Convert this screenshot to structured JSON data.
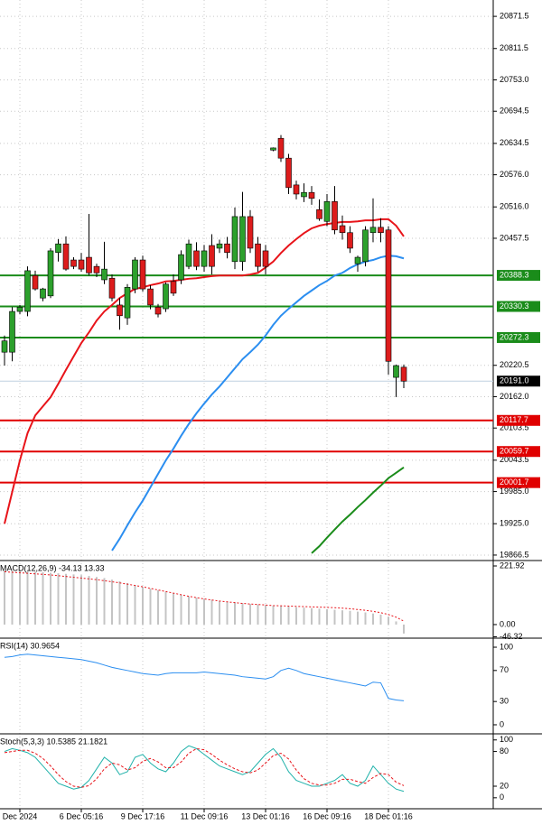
{
  "chart_data": [
    {
      "type": "candlestick",
      "categories": [
        null,
        null,
        "Dec 2024",
        null,
        null,
        null,
        null,
        null,
        null,
        null,
        "6 Dec 05:16",
        null,
        null,
        null,
        null,
        null,
        null,
        null,
        "9 Dec 17:16",
        null,
        null,
        null,
        null,
        null,
        null,
        null,
        "11 Dec 09:16",
        null,
        null,
        null,
        null,
        null,
        null,
        null,
        "13 Dec 01:16",
        null,
        null,
        null,
        null,
        null,
        null,
        null,
        "16 Dec 09:16",
        null,
        null,
        null,
        null,
        null,
        null,
        null,
        "18 Dec 01:16",
        null,
        null
      ],
      "open": [
        20245,
        20245,
        20321,
        20321,
        20388,
        20346,
        20350,
        20431,
        20447,
        20417,
        20417,
        20422,
        20405,
        20380,
        20383,
        20333,
        20309,
        20363,
        20417,
        20363,
        20329,
        20326,
        20377,
        20380,
        20405,
        20434,
        20405,
        20444,
        20439,
        20447,
        20414,
        20414,
        20498,
        20447,
        20434,
        20622,
        20644,
        20607,
        20557,
        20535,
        20543,
        20511,
        20489,
        20526,
        20481,
        20468,
        20410,
        20414,
        20468,
        20478,
        20473,
        20198,
        20217
      ],
      "high": [
        20276,
        20329,
        20333,
        20405,
        20397,
        20365,
        20439,
        20456,
        20461,
        20422,
        20430,
        20503,
        20410,
        20451,
        20390,
        20346,
        20372,
        20422,
        20425,
        20370,
        20335,
        20375,
        20390,
        20435,
        20455,
        20450,
        20445,
        20465,
        20455,
        20460,
        20515,
        20544,
        20510,
        20460,
        20445,
        20627,
        20650,
        20615,
        20565,
        20560,
        20555,
        20530,
        20540,
        20555,
        20500,
        20480,
        20425,
        20480,
        20532,
        20495,
        20480,
        20222,
        20222
      ],
      "low": [
        20220,
        20228,
        20316,
        20312,
        20360,
        20340,
        20346,
        20414,
        20397,
        20400,
        20395,
        20388,
        20385,
        20372,
        20340,
        20287,
        20296,
        20355,
        20358,
        20325,
        20310,
        20320,
        20350,
        20372,
        20400,
        20398,
        20395,
        20390,
        20430,
        20420,
        20400,
        20397,
        20430,
        20395,
        20390,
        20620,
        20600,
        20540,
        20530,
        20525,
        20520,
        20490,
        20480,
        20465,
        20455,
        20430,
        20395,
        20405,
        20450,
        20450,
        20203,
        20161,
        20178
      ],
      "close": [
        20266,
        20321,
        20329,
        20397,
        20363,
        20363,
        20434,
        20447,
        20400,
        20405,
        20400,
        20393,
        20393,
        20400,
        20346,
        20313,
        20366,
        20417,
        20363,
        20333,
        20316,
        20372,
        20355,
        20427,
        20447,
        20405,
        20434,
        20405,
        20447,
        20431,
        20498,
        20498,
        20439,
        20405,
        20405,
        20626,
        20607,
        20552,
        20540,
        20543,
        20532,
        20494,
        20526,
        20473,
        20468,
        20439,
        20422,
        20473,
        20478,
        20468,
        20228,
        20220,
        20191
      ],
      "up_color": "#2ca02c",
      "down_color": "#dd1c1c",
      "lines": [
        {
          "color": "#e8141a",
          "values": [
            19925,
            19984,
            20043,
            20094,
            20127,
            20144,
            20161,
            20186,
            20212,
            20237,
            20262,
            20282,
            20304,
            20321,
            20333,
            20346,
            20355,
            20363,
            20366,
            20370,
            20373,
            20377,
            20378,
            20380,
            20382,
            20383,
            20385,
            20387,
            20388,
            20388,
            20388,
            20388,
            20390,
            20393,
            20403,
            20414,
            20430,
            20444,
            20456,
            20467,
            20476,
            20481,
            20484,
            20486,
            20488,
            20488,
            20489,
            20491,
            20491,
            20493,
            20493,
            20481,
            20461
          ]
        },
        {
          "color": "#2b8ef0",
          "values": [
            null,
            null,
            null,
            null,
            null,
            null,
            null,
            null,
            null,
            null,
            null,
            null,
            null,
            null,
            19875,
            19897,
            19922,
            19946,
            19968,
            19993,
            20018,
            20043,
            20065,
            20089,
            20111,
            20131,
            20149,
            20166,
            20181,
            20198,
            20215,
            20232,
            20245,
            20259,
            20276,
            20296,
            20313,
            20326,
            20338,
            20350,
            20360,
            20370,
            20378,
            20388,
            20393,
            20402,
            20409,
            20414,
            20417,
            20422,
            20425,
            20424,
            20420
          ]
        },
        {
          "color": "#1a8c1a",
          "values": [
            null,
            null,
            null,
            null,
            null,
            null,
            null,
            null,
            null,
            null,
            null,
            null,
            null,
            null,
            null,
            null,
            null,
            null,
            null,
            null,
            null,
            null,
            null,
            null,
            null,
            null,
            null,
            null,
            null,
            null,
            null,
            null,
            null,
            null,
            null,
            null,
            null,
            null,
            null,
            null,
            19870,
            19883,
            19899,
            19914,
            19929,
            19942,
            19956,
            19969,
            19983,
            19996,
            20010,
            20020,
            20030
          ]
        }
      ],
      "levels": [
        {
          "value": 20388.3,
          "color": "#1a8c1a"
        },
        {
          "value": 20330.3,
          "color": "#1a8c1a"
        },
        {
          "value": 20272.3,
          "color": "#1a8c1a"
        },
        {
          "value": 20117.7,
          "color": "#e00000"
        },
        {
          "value": 20059.7,
          "color": "#e00000"
        },
        {
          "value": 20001.7,
          "color": "#e00000"
        }
      ],
      "current_price": {
        "value": 20191,
        "label": "20191.0"
      },
      "ylim": [
        19858,
        20902
      ],
      "yticks": [
        20871.5,
        20811.5,
        {
          "value": 20753,
          "label": "20753.0"
        },
        20694.5,
        20634.5,
        {
          "value": 20576,
          "label": "20576.0"
        },
        {
          "value": 20516,
          "label": "20516.0"
        },
        20457.5,
        20220.5,
        {
          "value": 20162,
          "label": "20162.0"
        },
        20103.5,
        20043.5,
        {
          "value": 19985,
          "label": "19985.0"
        },
        {
          "value": 19925,
          "label": "19925.0"
        },
        19866.5
      ],
      "grid": true
    },
    {
      "type": "macd",
      "title": "MACD(12,26,9) -34.13 13.33",
      "values": [
        205,
        204,
        203,
        202,
        200,
        198,
        196,
        194,
        192,
        190,
        187,
        184,
        180,
        176,
        170,
        164,
        157,
        150,
        143,
        136,
        130,
        124,
        118,
        112,
        107,
        102,
        98,
        94,
        90,
        87,
        84,
        81,
        78,
        76,
        74,
        72,
        70,
        68,
        66,
        64,
        62,
        60,
        58,
        56,
        54,
        52,
        49,
        46,
        42,
        38,
        30,
        12,
        -34
      ],
      "color": "#c4c4c4",
      "signal": {
        "color": "#e8141a",
        "values": [
          200,
          198,
          196,
          194,
          192,
          190,
          188,
          185,
          182,
          179,
          176,
          173,
          170,
          166,
          162,
          158,
          153,
          148,
          143,
          137,
          131,
          125,
          119,
          113,
          107,
          102,
          97,
          93,
          89,
          86,
          83,
          80,
          78,
          76,
          74,
          72,
          71,
          70,
          69,
          68,
          67,
          66,
          65,
          64,
          62,
          60,
          57,
          54,
          50,
          45,
          38,
          28,
          13
        ]
      },
      "ylim": [
        -48,
        239
      ],
      "yticks": [
        221.92,
        {
          "value": 0,
          "label": "0.00"
        },
        -46.32
      ]
    },
    {
      "type": "line",
      "title": "RSI(14) 30.9654",
      "series": [
        {
          "color": "#2b8ef0",
          "values": [
            87,
            88,
            90,
            91,
            90,
            89,
            88,
            87,
            86,
            85,
            84,
            82,
            80,
            77,
            74,
            72,
            70,
            68,
            66,
            65,
            64,
            66,
            67,
            67,
            67,
            67,
            68,
            67,
            66,
            65,
            64,
            62,
            61,
            60,
            59,
            62,
            70,
            73,
            70,
            66,
            64,
            62,
            60,
            58,
            56,
            54,
            52,
            50,
            55,
            54,
            34,
            32,
            31
          ]
        }
      ],
      "ylim": [
        -10.5,
        110.5
      ],
      "yticks": [
        100,
        70,
        30,
        0
      ]
    },
    {
      "type": "line",
      "title": "Stoch(5,3,3) 10.5385 21.1821",
      "series": [
        {
          "color": "#20b2aa",
          "values": [
            80,
            85,
            82,
            78,
            70,
            55,
            40,
            25,
            20,
            15,
            18,
            30,
            50,
            70,
            60,
            40,
            45,
            70,
            75,
            60,
            50,
            45,
            60,
            80,
            90,
            85,
            75,
            65,
            55,
            50,
            45,
            40,
            45,
            60,
            75,
            85,
            70,
            45,
            30,
            25,
            20,
            20,
            25,
            30,
            40,
            25,
            20,
            30,
            55,
            40,
            25,
            15,
            11
          ]
        },
        {
          "color": "#e8141a",
          "dash": true,
          "values": [
            78,
            80,
            82,
            82,
            77,
            68,
            55,
            40,
            28,
            20,
            18,
            21,
            33,
            50,
            60,
            57,
            48,
            52,
            63,
            68,
            62,
            52,
            52,
            62,
            77,
            85,
            83,
            75,
            65,
            57,
            50,
            45,
            43,
            48,
            60,
            73,
            77,
            67,
            48,
            33,
            25,
            22,
            22,
            25,
            32,
            32,
            28,
            25,
            35,
            42,
            40,
            27,
            21
          ]
        }
      ],
      "ylim": [
        -19,
        109
      ],
      "yticks": [
        100,
        80,
        20,
        0
      ]
    }
  ]
}
